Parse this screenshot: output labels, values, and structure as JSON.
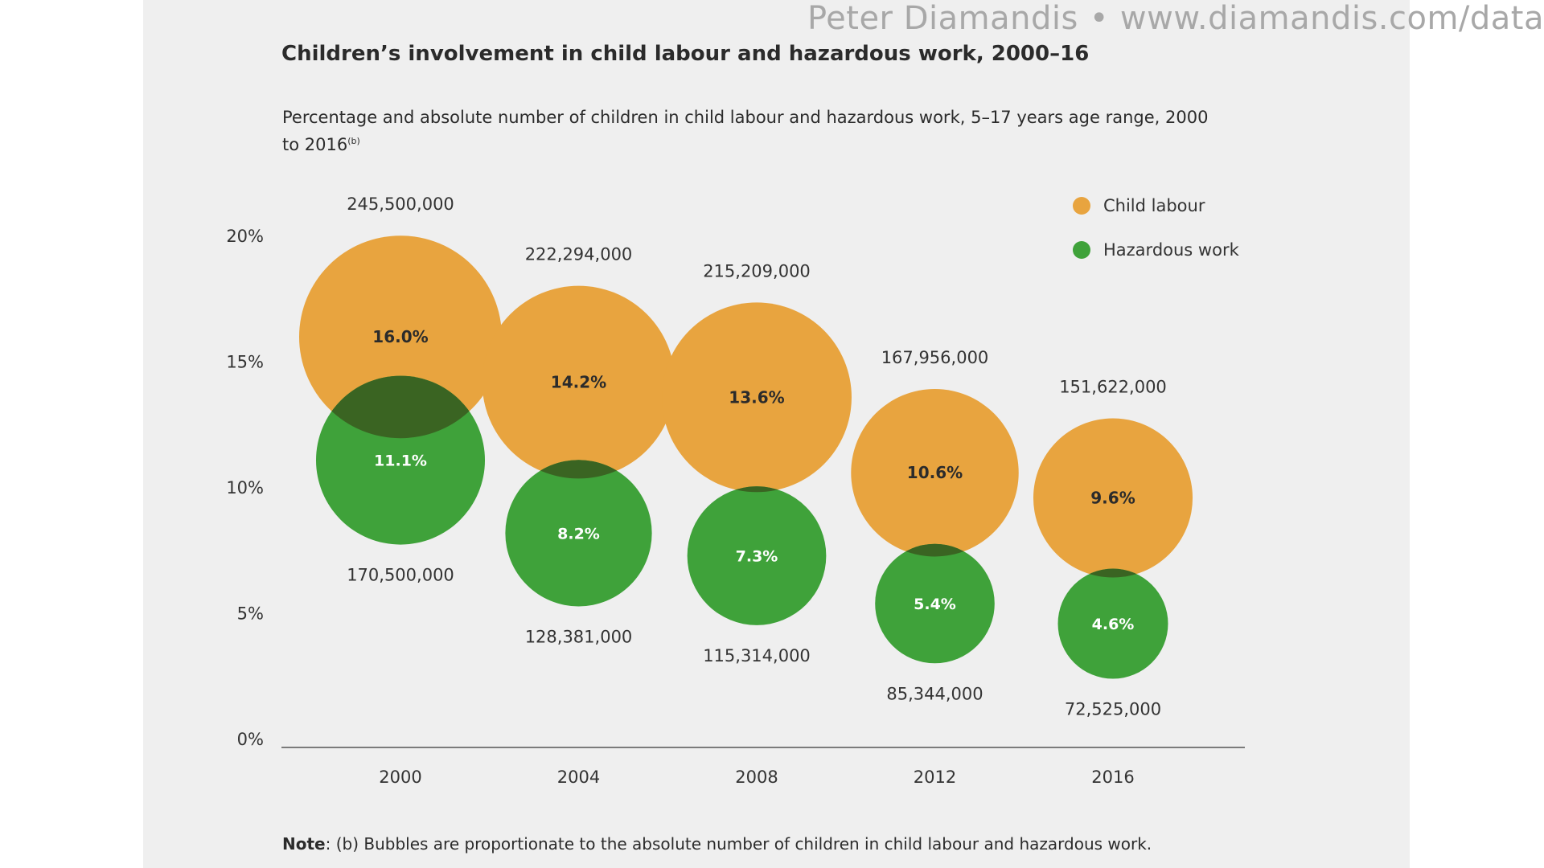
{
  "watermark": {
    "author": "Peter Diamandis",
    "separator": "•",
    "url": "www.diamandis.com/data"
  },
  "header": {
    "title": "Children’s involvement in child labour and hazardous work, 2000–16",
    "subtitle": "Percentage and absolute number of children in child labour and hazardous work, 5–17 years age range, 2000 to 2016",
    "subtitle_sup": "(b)"
  },
  "footer": {
    "note_label": "Note",
    "note_text": ": (b) Bubbles are proportionate to the absolute number of children in child labour and hazardous work."
  },
  "colors": {
    "child_labour": "#e8a43f",
    "hazardous_work": "#3fa23a",
    "overlap": "#3a6422"
  },
  "chart_data": {
    "type": "scatter",
    "encoding": "bubble",
    "title": "Children’s involvement in child labour and hazardous work, 2000–16",
    "subtitle": "Percentage and absolute number of children in child labour and hazardous work, 5–17 years age range, 2000 to 2016",
    "categories": [
      "2000",
      "2004",
      "2008",
      "2012",
      "2016"
    ],
    "yticks": [
      "0%",
      "5%",
      "10%",
      "15%",
      "20%"
    ],
    "ylim": [
      0,
      20
    ],
    "grid": false,
    "legend_position": "top-right",
    "series": [
      {
        "name": "Child labour",
        "color": "#e8a43f",
        "values": [
          16.0,
          14.2,
          13.6,
          10.6,
          9.6
        ],
        "value_labels": [
          "16.0%",
          "14.2%",
          "13.6%",
          "10.6%",
          "9.6%"
        ],
        "counts": [
          245500000,
          222294000,
          215209000,
          167956000,
          151622000
        ],
        "count_labels": [
          "245,500,000",
          "222,294,000",
          "215,209,000",
          "167,956,000",
          "151,622,000"
        ]
      },
      {
        "name": "Hazardous work",
        "color": "#3fa23a",
        "values": [
          11.1,
          8.2,
          7.3,
          5.4,
          4.6
        ],
        "value_labels": [
          "11.1%",
          "8.2%",
          "7.3%",
          "5.4%",
          "4.6%"
        ],
        "counts": [
          170500000,
          128381000,
          115314000,
          85344000,
          72525000
        ],
        "count_labels": [
          "170,500,000",
          "128,381,000",
          "115,314,000",
          "85,344,000",
          "72,525,000"
        ]
      }
    ]
  }
}
